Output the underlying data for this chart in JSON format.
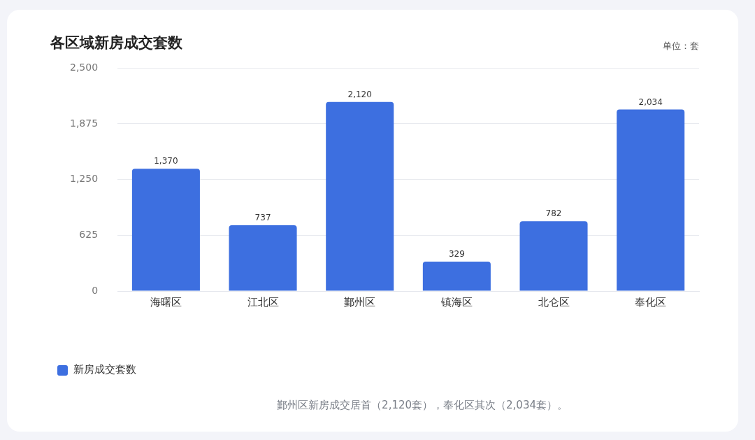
{
  "chart_data": {
    "type": "bar",
    "title": "各区域新房成交套数",
    "categories": [
      "海曙区",
      "江北区",
      "鄞州区",
      "镇海区",
      "北仑区",
      "奉化区"
    ],
    "series": [
      {
        "name": "新房成交套数",
        "color": "#3d6fe0",
        "values": [
          1370,
          737,
          2120,
          329,
          782,
          2034
        ],
        "value_labels": [
          "1,370",
          "737",
          "2,120",
          "329",
          "782",
          "2,034"
        ]
      }
    ],
    "ylim": [
      0,
      2500
    ],
    "yticks": [
      0,
      625,
      {
        "value": 1250,
        "label": "1,250"
      },
      {
        "value": 1875,
        "label": "1,875"
      },
      {
        "value": 2500,
        "label": "2,500"
      }
    ],
    "grid": "y",
    "legend": "bottom left",
    "annotations": [
      "单位：套",
      "鄞州区新房成交居首（2,120套），奉化区其次（2,034套）。"
    ]
  }
}
